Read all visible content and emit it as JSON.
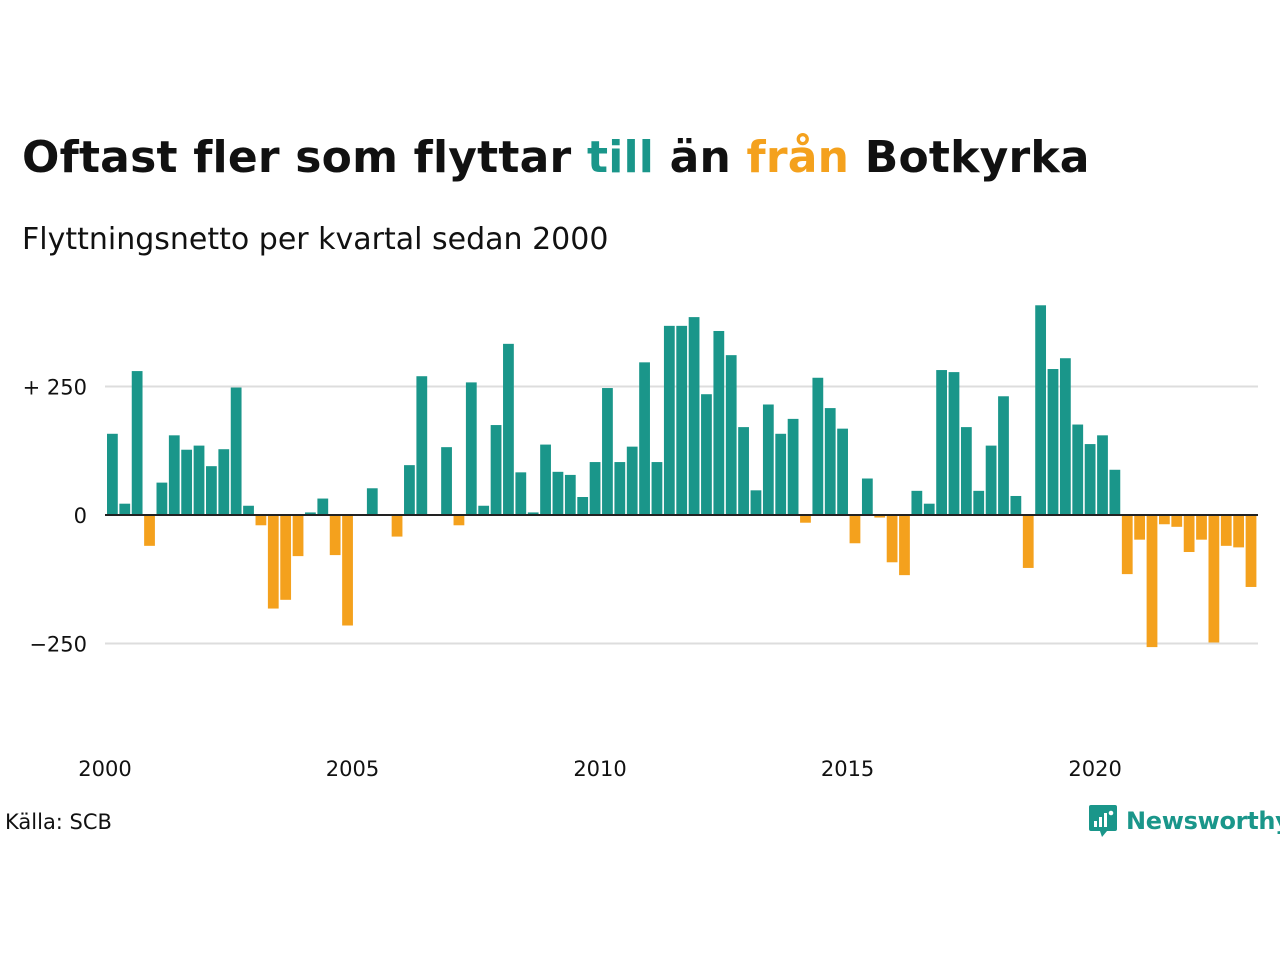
{
  "title": {
    "part1": "Oftast fler som flyttar ",
    "in_word": "till",
    "part2": " än ",
    "out_word": "från",
    "part3": " Botkyrka"
  },
  "subtitle": "Flyttningsnetto per kvartal sedan 2000",
  "source": "Källa: SCB",
  "brand": {
    "name": "Newsworthy",
    "icon": "newsworthy-logo-icon"
  },
  "colors": {
    "positive": "#1a968a",
    "negative": "#f4a11d",
    "grid": "#dddddd",
    "axis": "#222222",
    "text": "#111111",
    "brand": "#1a968a"
  },
  "chart_data": {
    "type": "bar",
    "title": "Oftast fler som flyttar till än från Botkyrka",
    "subtitle": "Flyttningsnetto per kvartal sedan 2000",
    "xlabel": "",
    "ylabel": "",
    "x_start_year": 2000,
    "bars_per_year": 4,
    "x_tick_labels": [
      "2000",
      "2005",
      "2010",
      "2015",
      "2020"
    ],
    "y_ticks": [
      {
        "value": 250,
        "label": "+ 250"
      },
      {
        "value": 0,
        "label": "0"
      },
      {
        "value": -250,
        "label": "−250"
      }
    ],
    "ylim": [
      -420,
      420
    ],
    "grid": true,
    "legend": "none (colors explained in title)",
    "values": [
      158,
      22,
      280,
      -60,
      63,
      155,
      127,
      135,
      95,
      128,
      248,
      18,
      -20,
      -182,
      -165,
      -80,
      5,
      32,
      -78,
      -215,
      0,
      52,
      0,
      -42,
      97,
      270,
      0,
      132,
      -20,
      258,
      18,
      175,
      333,
      83,
      5,
      137,
      84,
      78,
      35,
      103,
      247,
      103,
      133,
      297,
      103,
      368,
      368,
      385,
      235,
      358,
      311,
      171,
      48,
      215,
      158,
      187,
      -15,
      267,
      208,
      168,
      -55,
      71,
      -5,
      -92,
      -117,
      47,
      22,
      282,
      278,
      171,
      47,
      135,
      231,
      37,
      -103,
      408,
      284,
      305,
      176,
      138,
      155,
      88,
      -115,
      -48,
      -257,
      -18,
      -23,
      -72,
      -48,
      -248,
      -60,
      -63,
      -140
    ]
  }
}
